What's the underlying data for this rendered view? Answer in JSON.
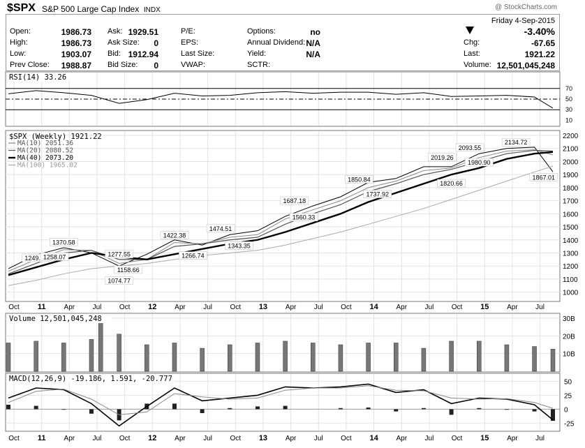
{
  "header": {
    "symbol": "$SPX",
    "name": "S&P 500 Large Cap Index",
    "exchange": "INDX",
    "watermark": "@ StockCharts.com"
  },
  "quote": {
    "date": "Friday  4-Sep-2015",
    "change_pct": "-3.40%",
    "fields": [
      {
        "label": "Open:",
        "value": "1986.73"
      },
      {
        "label": "High:",
        "value": "1986.73"
      },
      {
        "label": "Low:",
        "value": "1903.07"
      },
      {
        "label": "Prev Close:",
        "value": "1988.87"
      },
      {
        "label": "Ask:",
        "value": "1929.51"
      },
      {
        "label": "Ask Size:",
        "value": "0"
      },
      {
        "label": "Bid:",
        "value": "1912.94"
      },
      {
        "label": "Bid Size:",
        "value": "0"
      },
      {
        "label": "P/E:",
        "value": ""
      },
      {
        "label": "EPS:",
        "value": ""
      },
      {
        "label": "Last Size:",
        "value": ""
      },
      {
        "label": "VWAP:",
        "value": ""
      },
      {
        "label": "Options:",
        "value": "no"
      },
      {
        "label": "Annual Dividend:",
        "value": "N/A"
      },
      {
        "label": "Yield:",
        "value": "N/A"
      },
      {
        "label": "SCTR:",
        "value": ""
      },
      {
        "label": "Chg:",
        "value": "-67.65"
      },
      {
        "label": "Last:",
        "value": "1921.22"
      },
      {
        "label": "Volume:",
        "value": "12,501,045,248"
      }
    ]
  },
  "colors": {
    "price_bar": "#000000",
    "ma10": "#888888",
    "ma20": "#555555",
    "ma40": "#000000",
    "ma100": "#aaaaaa",
    "volume_bar": "#777777",
    "macd_hist": "#222222",
    "macd_signal": "#888888"
  },
  "chart_data": [
    {
      "panel": "rsi",
      "type": "line",
      "title": "RSI(14) 33.26",
      "ylim": [
        0,
        100
      ],
      "ticks": [
        "70",
        "50",
        "30",
        "10"
      ],
      "reference_levels": [
        70,
        50,
        30
      ],
      "x": [
        "Oct 2010",
        "Jan 2011",
        "Apr 2011",
        "Jul 2011",
        "Oct 2011",
        "Jan 2012",
        "Apr 2012",
        "Jul 2012",
        "Oct 2012",
        "Jan 2013",
        "Apr 2013",
        "Jul 2013",
        "Oct 2013",
        "Jan 2014",
        "Apr 2014",
        "Jul 2014",
        "Oct 2014",
        "Jan 2015",
        "Apr 2015",
        "Jul 2015",
        "Sep 2015"
      ],
      "values": [
        60,
        66,
        62,
        57,
        42,
        49,
        61,
        56,
        57,
        62,
        64,
        61,
        63,
        63,
        59,
        62,
        55,
        56,
        57,
        54,
        33
      ]
    },
    {
      "panel": "price",
      "type": "line",
      "title": "$SPX (Weekly) 1921.22",
      "legend": [
        "MA(10) 2051.36",
        "MA(20) 2080.52",
        "MA(40) 2073.20",
        "MA(100) 1965.02"
      ],
      "ylim": [
        950,
        2200
      ],
      "yticks": [
        "2200",
        "2100",
        "2000",
        "1900",
        "1800",
        "1700",
        "1600",
        "1500",
        "1400",
        "1300",
        "1200",
        "1100",
        "1000"
      ],
      "x_ticks": [
        "Oct",
        "11",
        "Apr",
        "Jul",
        "Oct",
        "12",
        "Apr",
        "Jul",
        "Oct",
        "13",
        "Apr",
        "Jul",
        "Oct",
        "14",
        "Apr",
        "Jul",
        "Oct",
        "15",
        "Apr",
        "Jul"
      ],
      "x": [
        "Oct 2010",
        "Jan 2011",
        "Apr 2011",
        "Jul 2011",
        "Oct 2011",
        "Jan 2012",
        "Apr 2012",
        "Jul 2012",
        "Oct 2012",
        "Jan 2013",
        "Apr 2013",
        "Jul 2013",
        "Oct 2013",
        "Jan 2014",
        "Apr 2014",
        "Jul 2014",
        "Oct 2014",
        "Jan 2015",
        "Apr 2015",
        "Jul 2015",
        "Sep 2015"
      ],
      "series": [
        {
          "name": "$SPX",
          "values": [
            1180,
            1285,
            1340,
            1300,
            1200,
            1290,
            1400,
            1360,
            1440,
            1470,
            1580,
            1660,
            1730,
            1840,
            1870,
            1960,
            1960,
            2060,
            2100,
            2110,
            1921
          ]
        },
        {
          "name": "MA(10)",
          "values": [
            1160,
            1250,
            1325,
            1320,
            1220,
            1250,
            1380,
            1370,
            1420,
            1440,
            1560,
            1630,
            1700,
            1800,
            1850,
            1930,
            1950,
            2030,
            2080,
            2090,
            2051
          ]
        },
        {
          "name": "MA(20)",
          "values": [
            1140,
            1220,
            1300,
            1320,
            1250,
            1250,
            1350,
            1370,
            1400,
            1420,
            1520,
            1600,
            1670,
            1770,
            1830,
            1900,
            1940,
            2000,
            2060,
            2085,
            2080
          ]
        },
        {
          "name": "MA(40)",
          "values": [
            1130,
            1190,
            1250,
            1300,
            1270,
            1250,
            1290,
            1330,
            1370,
            1400,
            1460,
            1530,
            1600,
            1690,
            1760,
            1830,
            1900,
            1950,
            2020,
            2060,
            2073
          ]
        },
        {
          "name": "MA(100)",
          "values": [
            1050,
            1090,
            1140,
            1180,
            1200,
            1220,
            1250,
            1280,
            1300,
            1320,
            1360,
            1410,
            1460,
            1520,
            1580,
            1640,
            1710,
            1780,
            1850,
            1920,
            1965
          ]
        }
      ],
      "annotations": [
        {
          "x": "Apr 2011",
          "y": 1370.58,
          "text": "1370.58"
        },
        {
          "x": "Jan 2011",
          "y": 1249.05,
          "text": "1249.05"
        },
        {
          "x": "Mar 2011",
          "y": 1258.07,
          "text": "1258.07"
        },
        {
          "x": "Oct 2011",
          "y": 1074.77,
          "text": "1074.77"
        },
        {
          "x": "Oct 2011",
          "y": 1277.55,
          "text": "1277.55"
        },
        {
          "x": "Nov 2011",
          "y": 1158.66,
          "text": "1158.66"
        },
        {
          "x": "Apr 2012",
          "y": 1422.38,
          "text": "1422.38"
        },
        {
          "x": "Jun 2012",
          "y": 1266.74,
          "text": "1266.74"
        },
        {
          "x": "Sep 2012",
          "y": 1474.51,
          "text": "1474.51"
        },
        {
          "x": "Nov 2012",
          "y": 1343.35,
          "text": "1343.35"
        },
        {
          "x": "May 2013",
          "y": 1687.18,
          "text": "1687.18"
        },
        {
          "x": "Jun 2013",
          "y": 1560.33,
          "text": "1560.33"
        },
        {
          "x": "Dec 2013",
          "y": 1850.84,
          "text": "1850.84"
        },
        {
          "x": "Feb 2014",
          "y": 1737.92,
          "text": "1737.92"
        },
        {
          "x": "Sep 2014",
          "y": 2019.26,
          "text": "2019.26"
        },
        {
          "x": "Oct 2014",
          "y": 1820.66,
          "text": "1820.66"
        },
        {
          "x": "Dec 2014",
          "y": 2093.55,
          "text": "2093.55"
        },
        {
          "x": "Jan 2015",
          "y": 1980.9,
          "text": "1980.90"
        },
        {
          "x": "May 2015",
          "y": 2134.72,
          "text": "2134.72"
        },
        {
          "x": "Aug 2015",
          "y": 1867.01,
          "text": "1867.01"
        }
      ]
    },
    {
      "panel": "volume",
      "type": "bar",
      "title": "Volume 12,501,045,248",
      "yticks": [
        "30B",
        "20B",
        "10B"
      ],
      "ylim": [
        0,
        30
      ],
      "unit": "B",
      "x": [
        "Oct 2010",
        "Jan 2011",
        "Apr 2011",
        "Jul 2011",
        "Aug 2011",
        "Oct 2011",
        "Jan 2012",
        "Apr 2012",
        "Jul 2012",
        "Oct 2012",
        "Jan 2013",
        "Apr 2013",
        "Jul 2013",
        "Oct 2013",
        "Jan 2014",
        "Apr 2014",
        "Jul 2014",
        "Oct 2014",
        "Jan 2015",
        "Apr 2015",
        "Jul 2015",
        "Sep 2015"
      ],
      "values": [
        16,
        17,
        16,
        18,
        30,
        21,
        15,
        16,
        13,
        15,
        16,
        17,
        16,
        15,
        16,
        16,
        13,
        17,
        17,
        15,
        14,
        12.5
      ]
    },
    {
      "panel": "macd",
      "type": "line",
      "title": "MACD(12,26,9) -19.186, 1.591, -20.777",
      "yticks": [
        "50",
        "25",
        "0",
        "-25"
      ],
      "ylim": [
        -37,
        58
      ],
      "x": [
        "Oct 2010",
        "Jan 2011",
        "Apr 2011",
        "Jul 2011",
        "Oct 2011",
        "Jan 2012",
        "Apr 2012",
        "Jul 2012",
        "Oct 2012",
        "Jan 2013",
        "Apr 2013",
        "Jul 2013",
        "Oct 2013",
        "Jan 2014",
        "Apr 2014",
        "Jul 2014",
        "Oct 2014",
        "Jan 2015",
        "Apr 2015",
        "Jul 2015",
        "Sep 2015"
      ],
      "series": [
        {
          "name": "MACD",
          "values": [
            20,
            38,
            35,
            10,
            -30,
            5,
            38,
            15,
            20,
            25,
            40,
            38,
            40,
            45,
            30,
            35,
            10,
            20,
            18,
            8,
            -19.186
          ]
        },
        {
          "name": "Signal",
          "values": [
            12,
            32,
            36,
            18,
            -10,
            -5,
            28,
            22,
            18,
            20,
            34,
            38,
            38,
            42,
            34,
            33,
            20,
            18,
            19,
            12,
            1.591
          ]
        },
        {
          "name": "Histogram",
          "values": [
            8,
            6,
            -1,
            -8,
            -20,
            10,
            10,
            -7,
            2,
            5,
            6,
            0,
            2,
            3,
            -4,
            2,
            -10,
            2,
            -1,
            -4,
            -20.777
          ]
        }
      ]
    }
  ]
}
